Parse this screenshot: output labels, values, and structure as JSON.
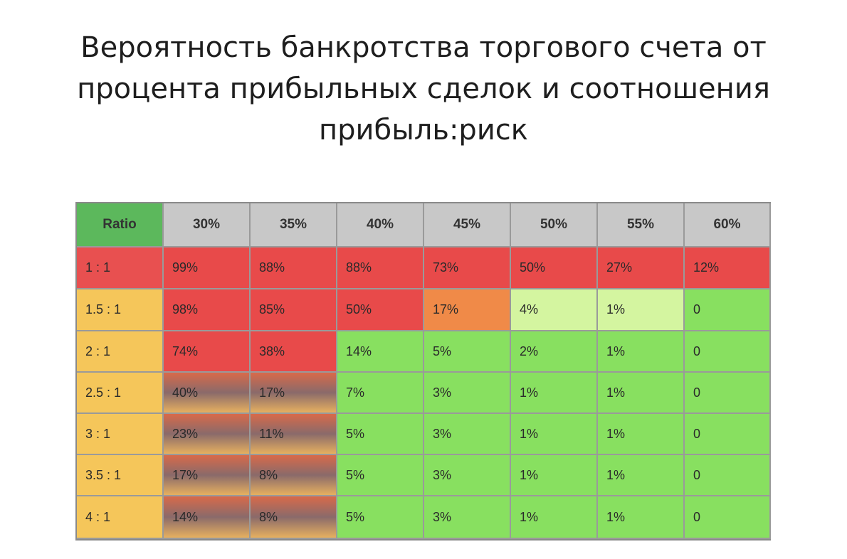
{
  "title_lines": [
    "Вероятность банкротства торгового счета от",
    "процента прибыльных сделок и соотношения",
    "прибыль:риск"
  ],
  "chart_data": {
    "type": "table",
    "corner_label": "Ratio",
    "columns": [
      "30%",
      "35%",
      "40%",
      "45%",
      "50%",
      "55%",
      "60%"
    ],
    "rows": [
      {
        "label": "1 : 1",
        "values": [
          "99%",
          "88%",
          "88%",
          "73%",
          "50%",
          "27%",
          "12%"
        ]
      },
      {
        "label": "1.5 : 1",
        "values": [
          "98%",
          "85%",
          "50%",
          "17%",
          "4%",
          "1%",
          "0"
        ]
      },
      {
        "label": "2 : 1",
        "values": [
          "74%",
          "38%",
          "14%",
          "5%",
          "2%",
          "1%",
          "0"
        ]
      },
      {
        "label": "2.5 : 1",
        "values": [
          "40%",
          "17%",
          "7%",
          "3%",
          "1%",
          "1%",
          "0"
        ]
      },
      {
        "label": "3 : 1",
        "values": [
          "23%",
          "11%",
          "5%",
          "3%",
          "1%",
          "1%",
          "0"
        ]
      },
      {
        "label": "3.5 : 1",
        "values": [
          "17%",
          "8%",
          "5%",
          "3%",
          "1%",
          "1%",
          "0"
        ]
      },
      {
        "label": "4 : 1",
        "values": [
          "14%",
          "8%",
          "5%",
          "3%",
          "1%",
          "1%",
          "0"
        ]
      }
    ],
    "colors": {
      "corner": "#5cb85c",
      "header": "#c8c8c8",
      "row_label_top": "#e85050",
      "row_label": "#f5c65a",
      "red": "#e84a4a",
      "orange": "#f08a48",
      "light_green": "#d4f5a0",
      "green": "#88e060",
      "mixed_top": "#d86a4a",
      "mixed_bottom": "#e6b060"
    }
  }
}
